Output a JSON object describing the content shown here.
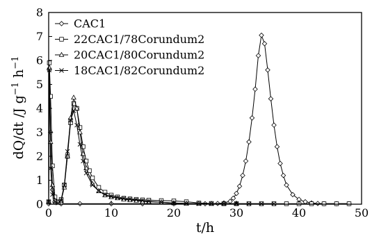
{
  "chart_data": {
    "type": "line",
    "xlabel": "t/h",
    "ylabel_main": "dQ/dt /J g",
    "ylabel_sup1": "−1",
    "ylabel_mid": " h",
    "ylabel_sup2": "−1",
    "xlim": [
      0,
      50
    ],
    "ylim": [
      0,
      8
    ],
    "xticks": [
      "0",
      "10",
      "20",
      "30",
      "40",
      "50"
    ],
    "yticks": [
      "0",
      "1",
      "2",
      "3",
      "4",
      "5",
      "6",
      "7",
      "8"
    ],
    "grid": false,
    "legend_position": "top-left",
    "series": [
      {
        "name": "CAC1",
        "marker": "diamond",
        "x": [
          0,
          0.1,
          0.3,
          0.6,
          1,
          2,
          5,
          10,
          15,
          20,
          25,
          27,
          28,
          29,
          29.5,
          30,
          30.5,
          31,
          31.5,
          32,
          32.5,
          33,
          33.5,
          34,
          34.5,
          35,
          35.5,
          36,
          36.5,
          37,
          37.5,
          38,
          39,
          40,
          41,
          42,
          43,
          44,
          46,
          48
        ],
        "y": [
          0.02,
          5.6,
          3.0,
          0.6,
          0.1,
          0.02,
          0.02,
          0.02,
          0.02,
          0.02,
          0.02,
          0.03,
          0.05,
          0.12,
          0.25,
          0.45,
          0.75,
          1.2,
          1.8,
          2.6,
          3.6,
          4.8,
          6.2,
          7.05,
          6.7,
          5.6,
          4.4,
          3.3,
          2.4,
          1.7,
          1.2,
          0.8,
          0.4,
          0.2,
          0.1,
          0.05,
          0.03,
          0.02,
          0.02,
          0.02
        ]
      },
      {
        "name": "22CAC1/78Corundum2",
        "marker": "square",
        "x": [
          0,
          0.1,
          0.3,
          0.6,
          1,
          1.5,
          2,
          2.5,
          3,
          3.5,
          4,
          4.5,
          5,
          5.5,
          6,
          6.5,
          7,
          8,
          9,
          10,
          11,
          12,
          13,
          14,
          15,
          16,
          18,
          20,
          22,
          24,
          26,
          28,
          30,
          32,
          34,
          36,
          38,
          40,
          42,
          44,
          46,
          48
        ],
        "y": [
          0.1,
          5.9,
          4.5,
          1.6,
          0.3,
          0.1,
          0.2,
          0.8,
          2.0,
          3.4,
          4.2,
          4.0,
          3.2,
          2.4,
          1.8,
          1.4,
          1.1,
          0.7,
          0.5,
          0.38,
          0.3,
          0.25,
          0.22,
          0.2,
          0.18,
          0.17,
          0.15,
          0.14,
          0.1,
          0.05,
          0.03,
          0.02,
          0.02,
          0.02,
          0.02,
          0.02,
          0.02,
          0.02,
          0.02,
          0.02,
          0.02,
          0.02
        ]
      },
      {
        "name": "20CAC1/80Corundum2",
        "marker": "triangle",
        "x": [
          0,
          0.1,
          0.3,
          0.6,
          1,
          1.5,
          2,
          2.5,
          3,
          3.5,
          4,
          4.5,
          5,
          5.5,
          6,
          7,
          8,
          9,
          10,
          11,
          12,
          13,
          14,
          15,
          16,
          18,
          20,
          22,
          24,
          26,
          28,
          30
        ],
        "y": [
          0.1,
          5.7,
          2.6,
          0.8,
          0.15,
          0.08,
          0.15,
          0.7,
          2.0,
          3.6,
          4.45,
          4.0,
          3.0,
          2.1,
          1.5,
          0.85,
          0.55,
          0.38,
          0.3,
          0.25,
          0.2,
          0.17,
          0.15,
          0.12,
          0.1,
          0.08,
          0.05,
          0.03,
          0.02,
          0.02,
          0.02,
          0.02
        ]
      },
      {
        "name": "18CAC1/82Corundum2",
        "marker": "cross",
        "x": [
          0,
          0.1,
          0.3,
          0.6,
          1,
          1.5,
          2,
          2.5,
          3,
          3.5,
          4,
          4.5,
          5,
          5.5,
          6,
          7,
          8,
          9,
          10,
          11,
          12,
          13,
          14,
          15,
          16,
          18,
          20,
          22,
          24,
          26,
          28,
          30,
          32,
          34,
          36
        ],
        "y": [
          0.1,
          5.6,
          1.5,
          0.4,
          0.1,
          0.05,
          0.15,
          0.8,
          2.2,
          3.5,
          3.9,
          3.3,
          2.5,
          1.8,
          1.3,
          0.8,
          0.55,
          0.4,
          0.32,
          0.27,
          0.23,
          0.2,
          0.18,
          0.15,
          0.12,
          0.08,
          0.05,
          0.03,
          0.02,
          0.02,
          0.02,
          0.02,
          0.02,
          0.02,
          0.02
        ]
      }
    ]
  }
}
